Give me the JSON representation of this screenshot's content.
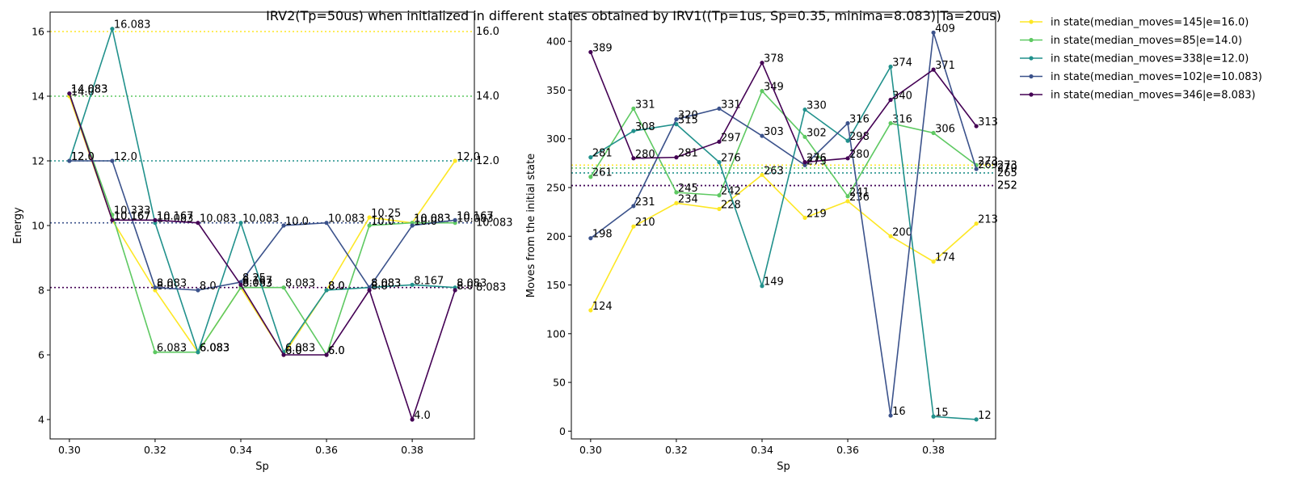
{
  "title": "IRV2(Tp=50us) when initialized in different states obtained by IRV1((Tp=1us, Sp=0.35, minima=8.083)|Ta=20us)",
  "legend": {
    "placement": "outside-right-top",
    "entries": [
      "in state(median_moves=145|e=16.0)",
      "in state(median_moves=85|e=14.0)",
      "in state(median_moves=338|e=12.0)",
      "in state(median_moves=102|e=10.083)",
      "in state(median_moves=346|e=8.083)"
    ]
  },
  "colors": [
    "#fde725",
    "#5ec962",
    "#21918c",
    "#3b528b",
    "#440154"
  ],
  "chart_data": [
    {
      "type": "line",
      "xlabel": "Sp",
      "ylabel": "Energy",
      "xlim": [
        0.2955,
        0.3945
      ],
      "ylim": [
        3.4,
        16.6
      ],
      "xticks": [
        0.3,
        0.32,
        0.34,
        0.36,
        0.38
      ],
      "xtick_labels": [
        "0.30",
        "0.32",
        "0.34",
        "0.36",
        "0.38"
      ],
      "yticks": [
        4,
        6,
        8,
        10,
        12,
        14,
        16
      ],
      "ytick_labels": [
        "4",
        "6",
        "8",
        "10",
        "12",
        "14",
        "16"
      ],
      "x": [
        0.3,
        0.31,
        0.32,
        0.33,
        0.34,
        0.35,
        0.36,
        0.37,
        0.38,
        0.39
      ],
      "series": [
        {
          "values": [
            14.0,
            10.167,
            8.0,
            6.083,
            8.083,
            6.0,
            8.0,
            10.25,
            10.083,
            12.0
          ],
          "labels": [
            "14.0",
            "10.167",
            "8.0",
            "6.083",
            "8.083",
            "6.0",
            "8.0",
            "10.25",
            "10.083",
            "12.0"
          ]
        },
        {
          "values": [
            14.083,
            10.333,
            6.083,
            6.083,
            8.083,
            8.083,
            6.0,
            10.0,
            10.083,
            10.083
          ],
          "labels": [
            "14.083",
            "10.333",
            "6.083",
            "6.083",
            "8.083",
            "8.083",
            "6.0",
            "10.0",
            "10.083",
            "10.083"
          ]
        },
        {
          "values": [
            12.0,
            16.083,
            10.083,
            6.083,
            10.083,
            6.083,
            8.0,
            8.083,
            8.167,
            8.083
          ],
          "labels": [
            "12.0",
            "16.083",
            "10.083",
            "6.083",
            "10.083",
            "6.083",
            "8.0",
            "8.083",
            "8.167",
            "8.083"
          ]
        },
        {
          "values": [
            12.0,
            12.0,
            8.083,
            8.0,
            8.25,
            10.0,
            10.083,
            8.083,
            10.0,
            10.167
          ],
          "labels": [
            "12.0",
            "12.0",
            "8.083",
            "8.0",
            "8.25",
            "10.0",
            "10.083",
            "8.083",
            "10.0",
            "10.167"
          ]
        },
        {
          "values": [
            14.083,
            10.167,
            10.167,
            10.083,
            8.167,
            6.0,
            6.0,
            8.0,
            4.0,
            8.0
          ],
          "labels": [
            "14.083",
            "10.167",
            "10.167",
            "10.083",
            "8.167",
            "6.0",
            "6.0",
            "8.0",
            "4.0",
            "8.0"
          ]
        }
      ],
      "hlines": [
        {
          "y": 16.0,
          "label": "16.0",
          "series": 0
        },
        {
          "y": 14.0,
          "label": "14.0",
          "series": 1
        },
        {
          "y": 12.0,
          "label": "12.0",
          "series": 2
        },
        {
          "y": 10.083,
          "label": "10.083",
          "series": 3
        },
        {
          "y": 8.083,
          "label": "8.083",
          "series": 4
        }
      ]
    },
    {
      "type": "line",
      "xlabel": "Sp",
      "ylabel": "Moves from the initial state",
      "xlim": [
        0.2955,
        0.3945
      ],
      "ylim": [
        -8,
        430
      ],
      "xticks": [
        0.3,
        0.32,
        0.34,
        0.36,
        0.38
      ],
      "xtick_labels": [
        "0.30",
        "0.32",
        "0.34",
        "0.36",
        "0.38"
      ],
      "yticks": [
        0,
        50,
        100,
        150,
        200,
        250,
        300,
        350,
        400
      ],
      "ytick_labels": [
        "0",
        "50",
        "100",
        "150",
        "200",
        "250",
        "300",
        "350",
        "400"
      ],
      "x": [
        0.3,
        0.31,
        0.32,
        0.33,
        0.34,
        0.35,
        0.36,
        0.37,
        0.38,
        0.39
      ],
      "series": [
        {
          "values": [
            124,
            210,
            234,
            228,
            263,
            219,
            236,
            200,
            174,
            213
          ],
          "labels": [
            "124",
            "210",
            "234",
            "228",
            "263",
            "219",
            "236",
            "200",
            "174",
            "213"
          ]
        },
        {
          "values": [
            261,
            331,
            245,
            242,
            349,
            302,
            241,
            316,
            306,
            273
          ],
          "labels": [
            "261",
            "331",
            "245",
            "242",
            "349",
            "302",
            "241",
            "316",
            "306",
            "273"
          ]
        },
        {
          "values": [
            281,
            308,
            315,
            276,
            149,
            330,
            298,
            374,
            15,
            12
          ],
          "labels": [
            "281",
            "308",
            "315",
            "276",
            "149",
            "330",
            "298",
            "374",
            "15",
            "12"
          ]
        },
        {
          "values": [
            198,
            231,
            320,
            331,
            303,
            273,
            316,
            16,
            409,
            269
          ],
          "labels": [
            "198",
            "231",
            "320",
            "331",
            "303",
            "273",
            "316",
            "16",
            "409",
            "269"
          ]
        },
        {
          "values": [
            389,
            280,
            281,
            297,
            378,
            276,
            280,
            340,
            371,
            313
          ],
          "labels": [
            "389",
            "280",
            "281",
            "297",
            "378",
            "276",
            "280",
            "340",
            "371",
            "313"
          ]
        }
      ],
      "hlines": [
        {
          "y": 273,
          "label": "273",
          "series": 0
        },
        {
          "y": 270,
          "label": "270",
          "series": 1
        },
        {
          "y": 265,
          "label": "265",
          "series": 2
        },
        {
          "y": 252,
          "label": "252",
          "series": 3
        },
        {
          "y": 252,
          "label": "252",
          "series": 4
        }
      ]
    }
  ]
}
